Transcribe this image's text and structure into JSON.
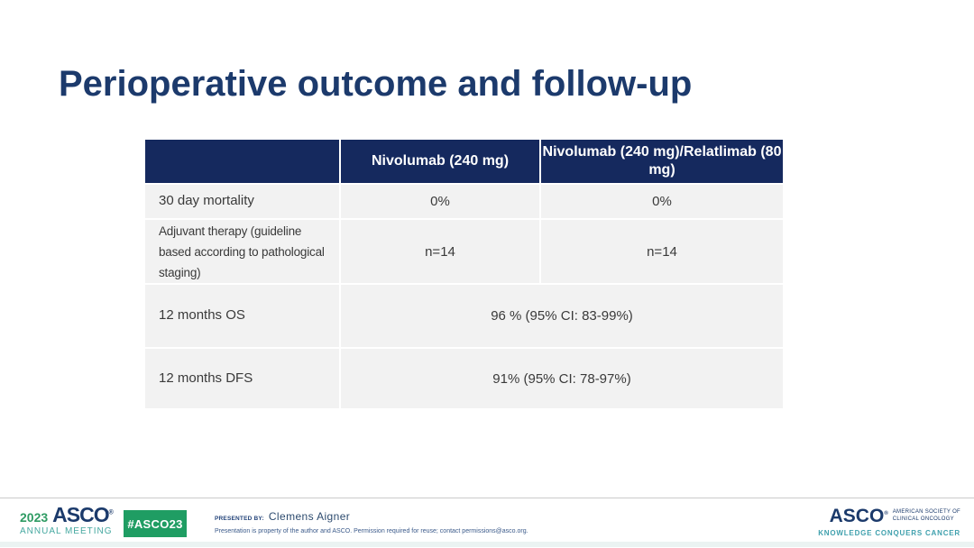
{
  "title": "Perioperative outcome and follow-up",
  "table": {
    "header": {
      "col1": "",
      "col2": "Nivolumab (240 mg)",
      "col3": "Nivolumab (240 mg)/Relatlimab (80\nmg)"
    },
    "rows": [
      {
        "label": "30 day mortality",
        "col2": "0%",
        "col3": "0%"
      },
      {
        "label": "Adjuvant therapy (guideline\nbased according to pathological\nstaging)",
        "col2": "n=14",
        "col3": "n=14"
      },
      {
        "label": "12 months OS",
        "merged": "96 % (95% CI: 83-99%)"
      },
      {
        "label": "12 months DFS",
        "merged": "91% (95% CI: 78-97%)"
      }
    ]
  },
  "footer": {
    "year": "2023",
    "asco_wordmark": "ASCO",
    "reg": "®",
    "annual_meeting": "ANNUAL MEETING",
    "hashtag": "#ASCO23",
    "presented_by_label": "PRESENTED BY:",
    "presenter": "Clemens Aigner",
    "disclaimer": "Presentation is property of the author and ASCO. Permission required for reuse; contact permissions@asco.org.",
    "asco_logo": "ASCO",
    "society_line1": "AMERICAN SOCIETY OF",
    "society_line2": "CLINICAL ONCOLOGY",
    "tagline": "KNOWLEDGE CONQUERS CANCER"
  },
  "colors": {
    "header_navy": "#15295e",
    "title_navy": "#1c3a6c",
    "row_gray": "#f2f2f2",
    "badge_green": "#1f9d63",
    "teal": "#45a8a0",
    "tagline_teal": "#3fa0ad"
  }
}
